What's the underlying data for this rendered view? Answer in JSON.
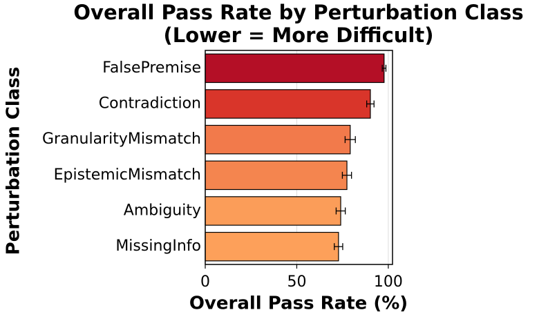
{
  "chart_data": {
    "type": "barh",
    "title": "Overall Pass Rate by Perturbation Class",
    "subtitle": "(Lower = More Difficult)",
    "xlabel": "Overall Pass Rate (%)",
    "ylabel": "Perturbation Class",
    "categories": [
      "FalsePremise",
      "Contradiction",
      "GranularityMismatch",
      "EpistemicMismatch",
      "Ambiguity",
      "MissingInfo"
    ],
    "values": [
      97.7,
      90.2,
      79.2,
      77.4,
      74.0,
      72.8
    ],
    "errors": [
      1.0,
      2.0,
      2.8,
      2.5,
      2.5,
      2.3
    ],
    "colors": [
      "#b40f26",
      "#d9352a",
      "#f27a4b",
      "#f4854f",
      "#fb9d59",
      "#fda05a"
    ],
    "xlim": [
      0,
      102.3
    ],
    "xticks": [
      0,
      50,
      100
    ],
    "grid": true
  }
}
